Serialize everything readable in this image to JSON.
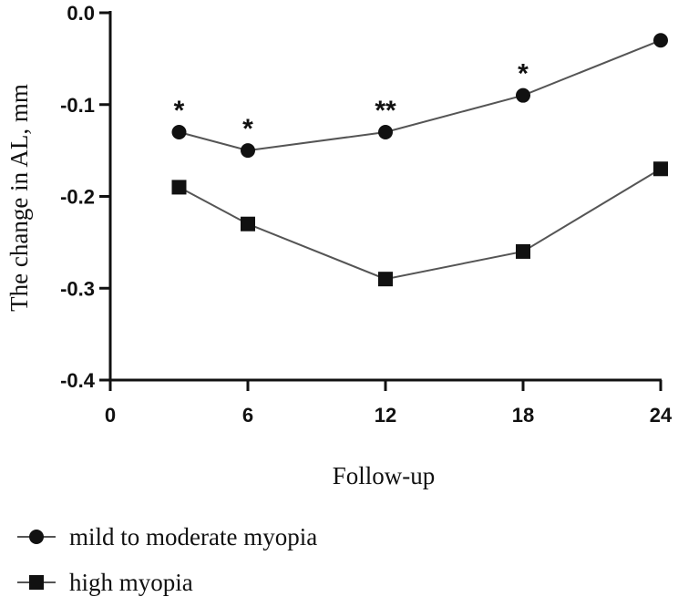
{
  "chart_data": {
    "type": "line",
    "title": "",
    "xlabel": "Follow-up",
    "ylabel": "The change in AL, mm",
    "xlim": [
      0,
      24
    ],
    "ylim": [
      -0.4,
      0.0
    ],
    "x_ticks": [
      0,
      6,
      12,
      18,
      24
    ],
    "x_tick_labels": [
      "0",
      "6",
      "12",
      "18",
      "24"
    ],
    "y_ticks": [
      0.0,
      -0.1,
      -0.2,
      -0.3,
      -0.4
    ],
    "y_tick_labels": [
      "0.0",
      "-0.1",
      "-0.2",
      "-0.3",
      "-0.4"
    ],
    "series": [
      {
        "name": "mild to moderate myopia",
        "marker": "circle",
        "x": [
          3,
          6,
          12,
          18,
          24
        ],
        "y": [
          -0.13,
          -0.15,
          -0.13,
          -0.09,
          -0.03
        ]
      },
      {
        "name": "high myopia",
        "marker": "square",
        "x": [
          3,
          6,
          12,
          18,
          24
        ],
        "y": [
          -0.19,
          -0.23,
          -0.29,
          -0.26,
          -0.17
        ]
      }
    ],
    "annotations": [
      {
        "x": 3,
        "label": "*"
      },
      {
        "x": 6,
        "label": "*"
      },
      {
        "x": 12,
        "label": "**"
      },
      {
        "x": 18,
        "label": "*"
      }
    ],
    "legend_position": "bottom-left",
    "grid": false
  },
  "colors": {
    "line": "#555555",
    "marker": "#111111",
    "axis": "#111111"
  }
}
